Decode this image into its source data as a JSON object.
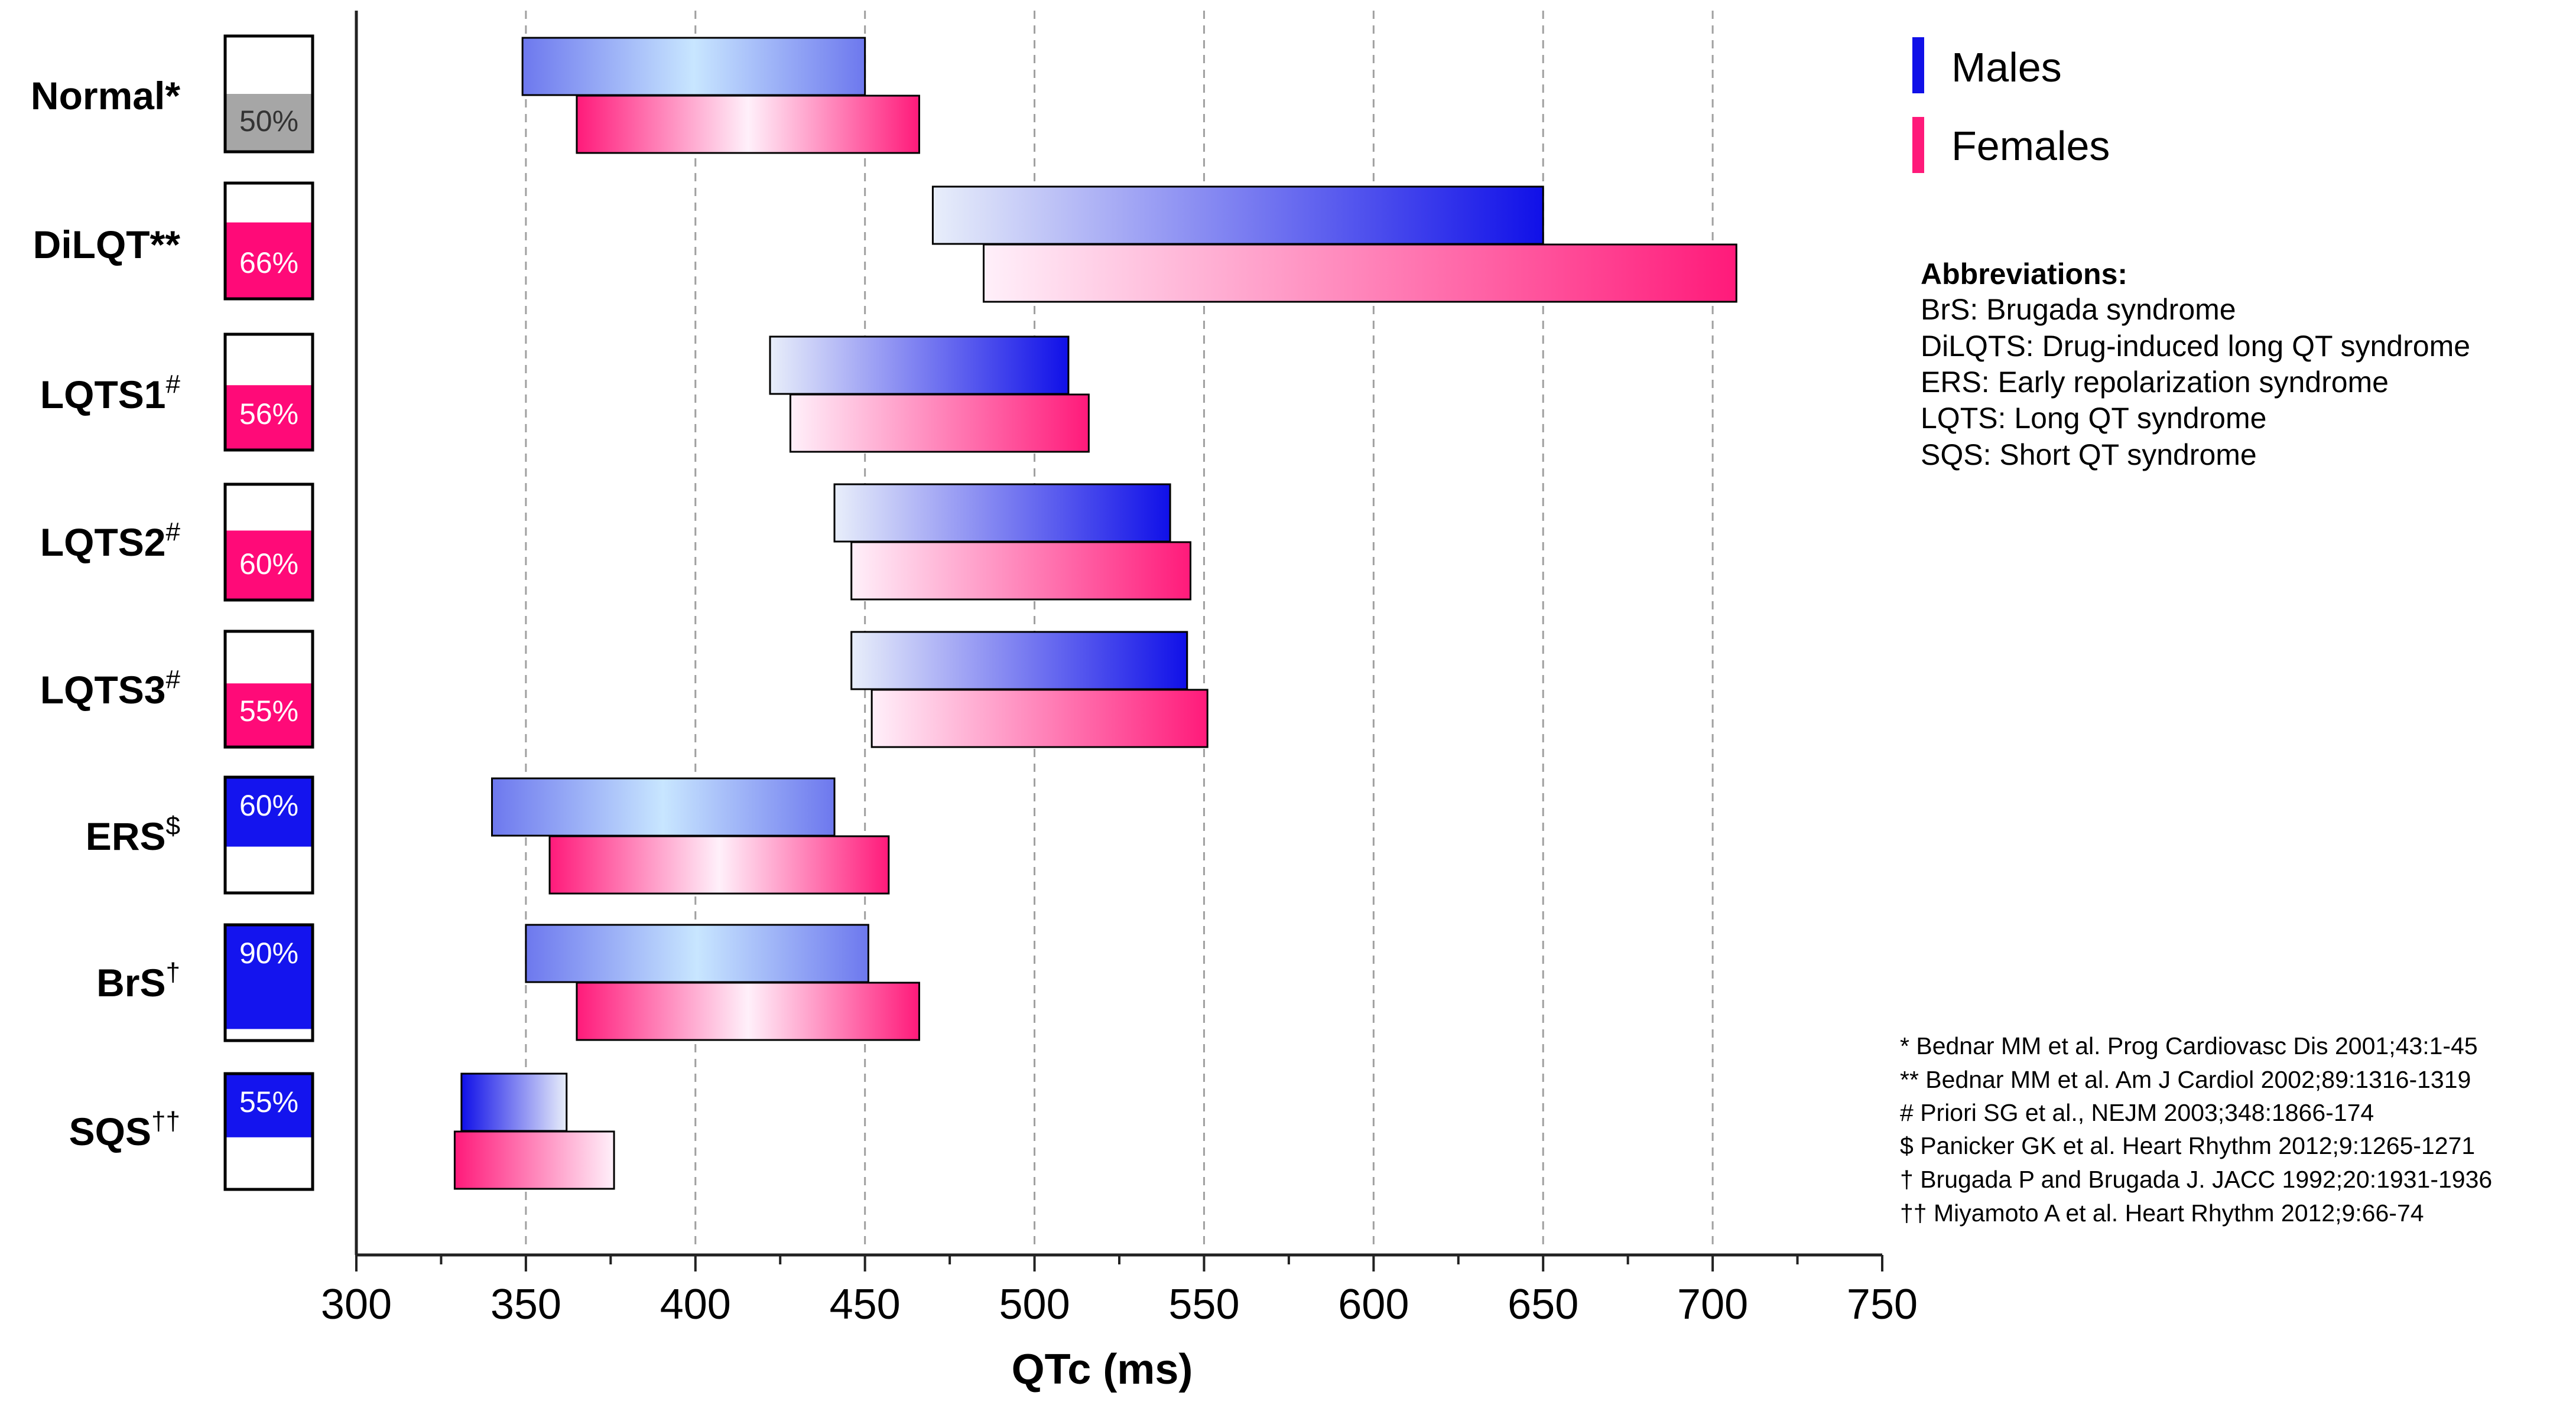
{
  "colors": {
    "male_dark": "#1010e8",
    "male_light": "#c8e6ff",
    "female_dark": "#ff1a7a",
    "female_light": "#fff0fa",
    "female_box_fill": "#ff0a78",
    "male_box_fill": "#1414ee",
    "normal_box_fill": "#a6a6a6",
    "grid": "#a0a0a0",
    "axis": "#222222"
  },
  "chart_data": {
    "type": "bar",
    "subtype": "floating-range",
    "xlabel": "QTc (ms)",
    "xlim": [
      300,
      750
    ],
    "xticks": [
      300,
      350,
      400,
      450,
      500,
      550,
      600,
      650,
      700,
      750
    ],
    "grid": "vertical dashed at 350-700",
    "legend": {
      "placement": "top-right",
      "entries": [
        {
          "name": "Males",
          "color": "#1010e8"
        },
        {
          "name": "Females",
          "color": "#ff1a7a"
        }
      ]
    },
    "categories": [
      {
        "name": "Normal",
        "sup": "*",
        "sup_style": "inline",
        "percent": 50,
        "percent_label": "50%",
        "predominant": "none",
        "male": [
          349,
          450
        ],
        "female": [
          365,
          466
        ],
        "male_gradient": "center-light",
        "female_gradient": "center-light"
      },
      {
        "name": "DiLQT",
        "sup": "**",
        "sup_style": "inline",
        "percent": 66,
        "percent_label": "66%",
        "predominant": "female",
        "male": [
          470,
          650
        ],
        "female": [
          485,
          707
        ],
        "male_gradient": "light-to-dark",
        "female_gradient": "light-to-dark"
      },
      {
        "name": "LQTS1",
        "sup": "#",
        "sup_style": "super",
        "percent": 56,
        "percent_label": "56%",
        "predominant": "female",
        "male": [
          422,
          510
        ],
        "female": [
          428,
          516
        ],
        "male_gradient": "light-to-dark",
        "female_gradient": "light-to-dark"
      },
      {
        "name": "LQTS2",
        "sup": "#",
        "sup_style": "super",
        "percent": 60,
        "percent_label": "60%",
        "predominant": "female",
        "male": [
          441,
          540
        ],
        "female": [
          446,
          546
        ],
        "male_gradient": "light-to-dark",
        "female_gradient": "light-to-dark"
      },
      {
        "name": "LQTS3",
        "sup": "#",
        "sup_style": "super",
        "percent": 55,
        "percent_label": "55%",
        "predominant": "female",
        "male": [
          446,
          545
        ],
        "female": [
          452,
          551
        ],
        "male_gradient": "light-to-dark",
        "female_gradient": "light-to-dark"
      },
      {
        "name": "ERS",
        "sup": "$",
        "sup_style": "super",
        "percent": 60,
        "percent_label": "60%",
        "predominant": "male",
        "male": [
          340,
          441
        ],
        "female": [
          357,
          457
        ],
        "male_gradient": "center-light",
        "female_gradient": "center-light"
      },
      {
        "name": "BrS",
        "sup": "†",
        "sup_style": "super",
        "percent": 90,
        "percent_label": "90%",
        "predominant": "male",
        "male": [
          350,
          451
        ],
        "female": [
          365,
          466
        ],
        "male_gradient": "center-light",
        "female_gradient": "center-light"
      },
      {
        "name": "SQS",
        "sup": "††",
        "sup_style": "super",
        "percent": 55,
        "percent_label": "55%",
        "predominant": "male",
        "male": [
          331,
          362
        ],
        "female": [
          329,
          376
        ],
        "male_gradient": "dark-to-light",
        "female_gradient": "dark-to-light"
      }
    ]
  },
  "abbreviations": {
    "title": "Abbreviations:",
    "items": [
      "BrS: Brugada syndrome",
      "DiLQTS: Drug-induced long QT syndrome",
      "ERS: Early repolarization syndrome",
      "LQTS: Long QT syndrome",
      "SQS: Short QT syndrome"
    ]
  },
  "references": [
    "* Bednar MM et al. Prog Cardiovasc Dis 2001;43:1-45",
    "** Bednar MM et al. Am J Cardiol 2002;89:1316-1319",
    "# Priori SG et al., NEJM 2003;348:1866-174",
    "$ Panicker GK et al. Heart Rhythm 2012;9:1265-1271",
    "† Brugada P and Brugada J. JACC 1992;20:1931-1936",
    "†† Miyamoto A et al. Heart Rhythm 2012;9:66-74"
  ]
}
